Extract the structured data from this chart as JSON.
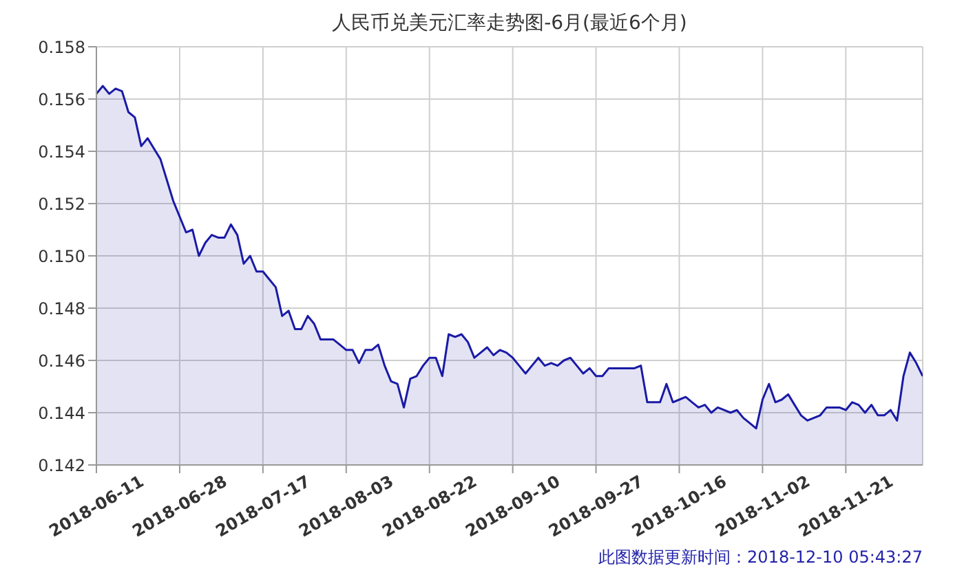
{
  "chart_data": {
    "type": "area",
    "title": "人民币兑美元汇率走势图-6月(最近6个月)",
    "categories": [
      "2018-06-11",
      null,
      null,
      null,
      null,
      null,
      null,
      null,
      null,
      null,
      null,
      null,
      null,
      "2018-06-28",
      null,
      null,
      null,
      null,
      null,
      null,
      null,
      null,
      null,
      null,
      null,
      null,
      "2018-07-17",
      null,
      null,
      null,
      null,
      null,
      null,
      null,
      null,
      null,
      null,
      null,
      null,
      "2018-08-03",
      null,
      null,
      null,
      null,
      null,
      null,
      null,
      null,
      null,
      null,
      null,
      null,
      "2018-08-22",
      null,
      null,
      null,
      null,
      null,
      null,
      null,
      null,
      null,
      null,
      null,
      null,
      "2018-09-10",
      null,
      null,
      null,
      null,
      null,
      null,
      null,
      null,
      null,
      null,
      null,
      null,
      "2018-09-27",
      null,
      null,
      null,
      null,
      null,
      null,
      null,
      null,
      null,
      null,
      null,
      null,
      "2018-10-16",
      null,
      null,
      null,
      null,
      null,
      null,
      null,
      null,
      null,
      null,
      null,
      null,
      "2018-11-02",
      null,
      null,
      null,
      null,
      null,
      null,
      null,
      null,
      null,
      null,
      null,
      null,
      "2018-11-21",
      null,
      null,
      null,
      null,
      null,
      null,
      null,
      null,
      null,
      null,
      null,
      null
    ],
    "series": [
      {
        "color": "#1a1aa6",
        "values": [
          0.1562,
          0.1565,
          0.1562,
          0.1564,
          0.1563,
          0.1555,
          0.1553,
          0.1542,
          0.1545,
          0.1541,
          0.1537,
          0.1529,
          0.1521,
          0.1515,
          0.1509,
          0.151,
          0.15,
          0.1505,
          0.1508,
          0.1507,
          0.1507,
          0.1512,
          0.1508,
          0.1497,
          0.15,
          0.1494,
          0.1494,
          0.1491,
          0.1488,
          0.1477,
          0.1479,
          0.1472,
          0.1472,
          0.1477,
          0.1474,
          0.1468,
          0.1468,
          0.1468,
          0.1466,
          0.1464,
          0.1464,
          0.1459,
          0.1464,
          0.1464,
          0.1466,
          0.1458,
          0.1452,
          0.1451,
          0.1442,
          0.1453,
          0.1454,
          0.1458,
          0.1461,
          0.1461,
          0.1454,
          0.147,
          0.1469,
          0.147,
          0.1467,
          0.1461,
          0.1463,
          0.1465,
          0.1462,
          0.1464,
          0.1463,
          0.1461,
          0.1458,
          0.1455,
          0.1458,
          0.1461,
          0.1458,
          0.1459,
          0.1458,
          0.146,
          0.1461,
          0.1458,
          0.1455,
          0.1457,
          0.1454,
          0.1454,
          0.1457,
          0.1457,
          0.1457,
          0.1457,
          0.1457,
          0.1458,
          0.1444,
          0.1444,
          0.1444,
          0.1451,
          0.1444,
          0.1445,
          0.1446,
          0.1444,
          0.1442,
          0.1443,
          0.144,
          0.1442,
          0.1441,
          0.144,
          0.1441,
          0.1438,
          0.1436,
          0.1434,
          0.1445,
          0.1451,
          0.1444,
          0.1445,
          0.1447,
          0.1443,
          0.1439,
          0.1437,
          0.1438,
          0.1439,
          0.1442,
          0.1442,
          0.1442,
          0.1441,
          0.1444,
          0.1443,
          0.144,
          0.1443,
          0.1439,
          0.1439,
          0.1441,
          0.1437,
          0.1454,
          0.1463,
          0.1459,
          0.1454
        ]
      }
    ],
    "ylim": [
      0.142,
      0.158
    ],
    "yticks": [
      0.142,
      0.144,
      0.146,
      {
        "value": 0.148,
        "label": "0.148"
      },
      {
        "value": 0.15,
        "label": "0.150"
      },
      0.152,
      0.154,
      0.156,
      0.158
    ],
    "grid": true,
    "annotations": [
      "此图数据更新时间：2018-12-10 05:43:27"
    ]
  }
}
